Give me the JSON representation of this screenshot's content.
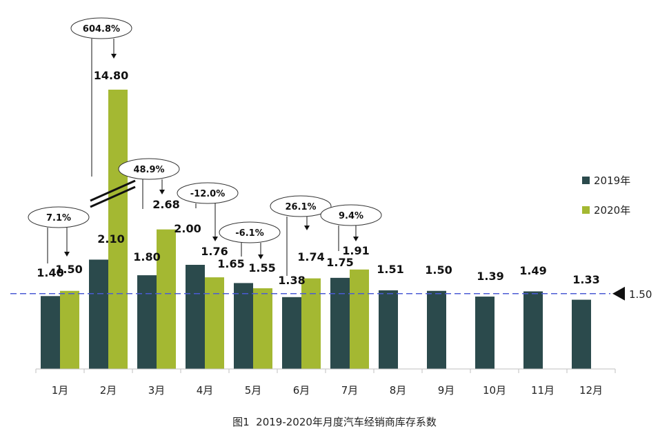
{
  "chart_data": {
    "type": "bar",
    "title": "图1  2019-2020年月度汽车经销商库存系数",
    "categories": [
      "1月",
      "2月",
      "3月",
      "4月",
      "5月",
      "6月",
      "7月",
      "8月",
      "9月",
      "10月",
      "11月",
      "12月"
    ],
    "series": [
      {
        "name": "2019年",
        "color": "#2b4a4c",
        "values": [
          1.4,
          2.1,
          1.8,
          2.0,
          1.65,
          1.38,
          1.75,
          1.51,
          1.5,
          1.39,
          1.49,
          1.33
        ],
        "labels": [
          "1.40",
          "2.10",
          "1.80",
          "2.00",
          "1.65",
          "1.38",
          "1.75",
          "1.51",
          "1.50",
          "1.39",
          "1.49",
          "1.33"
        ]
      },
      {
        "name": "2020年",
        "color": "#a4b832",
        "values": [
          1.5,
          14.8,
          2.68,
          1.76,
          1.55,
          1.74,
          1.91,
          null,
          null,
          null,
          null,
          null
        ],
        "labels": [
          "1.50",
          "14.80",
          "2.68",
          "1.76",
          "1.55",
          "1.74",
          "1.91",
          "",
          "",
          "",
          "",
          ""
        ]
      }
    ],
    "yoy_change": [
      "7.1%",
      "604.8%",
      "48.9%",
      "-12.0%",
      "-6.1%",
      "26.1%",
      "9.4%"
    ],
    "reference_line": {
      "value": 1.5,
      "label": "1.50",
      "color": "#4a5bd4"
    },
    "axis_break": true,
    "grid": false,
    "legend": "right"
  }
}
